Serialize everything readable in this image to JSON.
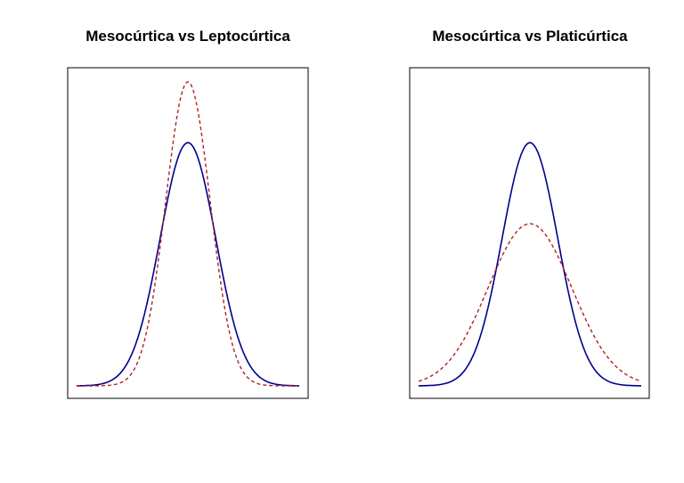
{
  "chart_data": [
    {
      "type": "line",
      "title": "Mesocúrtica vs Leptocúrtica",
      "xlabel": "",
      "ylabel": "",
      "xlim": [
        -4,
        4
      ],
      "ylim": [
        -0.02,
        0.52
      ],
      "grid": false,
      "axes_visible": false,
      "series": [
        {
          "name": "Mesocúrtica",
          "distribution": "normal",
          "mean": 0,
          "sd": 1,
          "color": "#00008b",
          "style": "solid",
          "peak": 0.399
        },
        {
          "name": "Leptocúrtica",
          "distribution": "normal",
          "mean": 0,
          "sd": 0.8,
          "color": "#b22222",
          "style": "dashed",
          "peak": 0.499
        }
      ]
    },
    {
      "type": "line",
      "title": "Mesocúrtica vs Platicúrtica",
      "xlabel": "",
      "ylabel": "",
      "xlim": [
        -4,
        4
      ],
      "ylim": [
        -0.02,
        0.52
      ],
      "grid": false,
      "axes_visible": false,
      "series": [
        {
          "name": "Mesocúrtica",
          "distribution": "normal",
          "mean": 0,
          "sd": 1,
          "color": "#00008b",
          "style": "solid",
          "peak": 0.399
        },
        {
          "name": "Platicúrtica",
          "distribution": "normal",
          "mean": 0,
          "sd": 1.5,
          "color": "#b22222",
          "style": "dashed",
          "peak": 0.266
        }
      ]
    }
  ]
}
